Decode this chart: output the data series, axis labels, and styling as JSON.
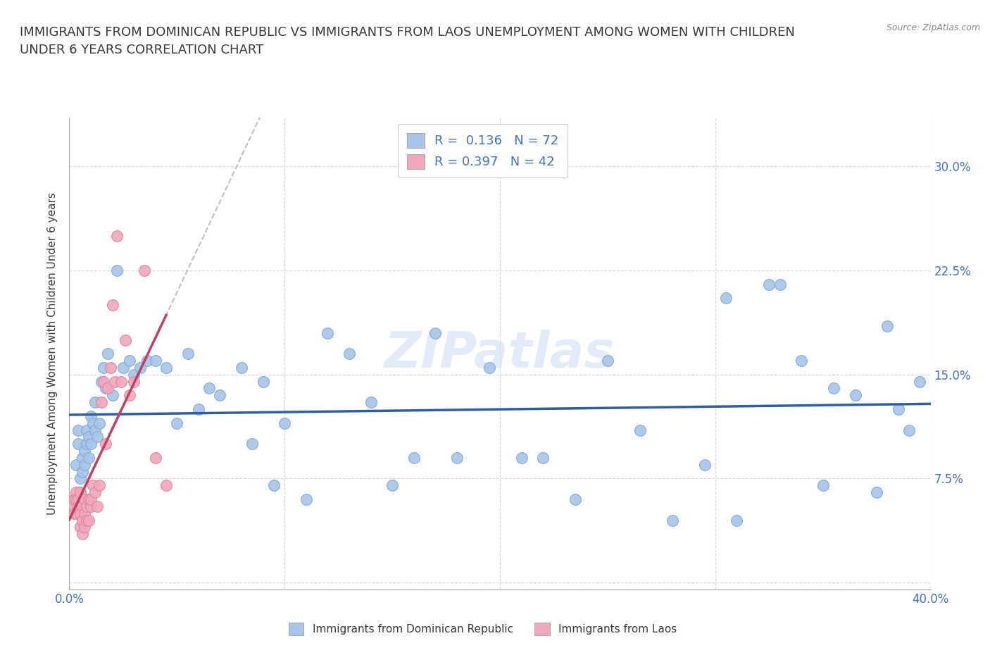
{
  "title": "IMMIGRANTS FROM DOMINICAN REPUBLIC VS IMMIGRANTS FROM LAOS UNEMPLOYMENT AMONG WOMEN WITH CHILDREN\nUNDER 6 YEARS CORRELATION CHART",
  "source_text": "Source: ZipAtlas.com",
  "ylabel": "Unemployment Among Women with Children Under 6 years",
  "title_fontsize": 13,
  "title_color": "#3a3a3a",
  "source_color": "#888888",
  "xlim": [
    0.0,
    0.4
  ],
  "ylim": [
    -0.005,
    0.335
  ],
  "xticks": [
    0.0,
    0.1,
    0.2,
    0.3,
    0.4
  ],
  "xticklabels_show": [
    "0.0%",
    "40.0%"
  ],
  "xticklabels_pos": [
    0.0,
    0.4
  ],
  "yticks": [
    0.0,
    0.075,
    0.15,
    0.225,
    0.3
  ],
  "yticklabels": [
    "",
    "7.5%",
    "15.0%",
    "22.5%",
    "30.0%"
  ],
  "tick_color": "#4472c4",
  "grid_color": "#d0d0d0",
  "blue_color": "#a8c4e8",
  "pink_color": "#f0a8bc",
  "blue_edge_color": "#7aaad4",
  "pink_edge_color": "#e080a0",
  "blue_line_color": "#2e5fa3",
  "pink_line_color": "#c04060",
  "gray_dash_color": "#c0c0c0",
  "watermark_text": "ZIPatlas",
  "legend_R1": "0.136",
  "legend_N1": "72",
  "legend_R2": "0.397",
  "legend_N2": "42",
  "legend_label1": "Immigrants from Dominican Republic",
  "legend_label2": "Immigrants from Laos",
  "blue_x": [
    0.003,
    0.004,
    0.004,
    0.005,
    0.005,
    0.006,
    0.006,
    0.007,
    0.007,
    0.008,
    0.008,
    0.009,
    0.009,
    0.01,
    0.01,
    0.011,
    0.012,
    0.012,
    0.013,
    0.014,
    0.015,
    0.016,
    0.017,
    0.018,
    0.02,
    0.022,
    0.025,
    0.028,
    0.03,
    0.033,
    0.036,
    0.04,
    0.045,
    0.05,
    0.055,
    0.06,
    0.065,
    0.07,
    0.08,
    0.085,
    0.09,
    0.095,
    0.1,
    0.11,
    0.12,
    0.13,
    0.14,
    0.15,
    0.16,
    0.17,
    0.18,
    0.195,
    0.21,
    0.22,
    0.235,
    0.25,
    0.265,
    0.28,
    0.295,
    0.31,
    0.325,
    0.34,
    0.355,
    0.365,
    0.375,
    0.385,
    0.39,
    0.395,
    0.305,
    0.33,
    0.35,
    0.38
  ],
  "blue_y": [
    0.085,
    0.1,
    0.11,
    0.065,
    0.075,
    0.09,
    0.08,
    0.095,
    0.085,
    0.1,
    0.11,
    0.105,
    0.09,
    0.12,
    0.1,
    0.115,
    0.13,
    0.11,
    0.105,
    0.115,
    0.145,
    0.155,
    0.14,
    0.165,
    0.135,
    0.225,
    0.155,
    0.16,
    0.15,
    0.155,
    0.16,
    0.16,
    0.155,
    0.115,
    0.165,
    0.125,
    0.14,
    0.135,
    0.155,
    0.1,
    0.145,
    0.07,
    0.115,
    0.06,
    0.18,
    0.165,
    0.13,
    0.07,
    0.09,
    0.18,
    0.09,
    0.155,
    0.09,
    0.09,
    0.06,
    0.16,
    0.11,
    0.045,
    0.085,
    0.045,
    0.215,
    0.16,
    0.14,
    0.135,
    0.065,
    0.125,
    0.11,
    0.145,
    0.205,
    0.215,
    0.07,
    0.185
  ],
  "pink_x": [
    0.001,
    0.002,
    0.002,
    0.003,
    0.003,
    0.003,
    0.004,
    0.004,
    0.005,
    0.005,
    0.005,
    0.006,
    0.006,
    0.006,
    0.007,
    0.007,
    0.007,
    0.008,
    0.008,
    0.009,
    0.009,
    0.01,
    0.01,
    0.011,
    0.012,
    0.013,
    0.014,
    0.015,
    0.016,
    0.017,
    0.018,
    0.019,
    0.02,
    0.021,
    0.022,
    0.024,
    0.026,
    0.028,
    0.03,
    0.035,
    0.04,
    0.045
  ],
  "pink_y": [
    0.055,
    0.06,
    0.05,
    0.065,
    0.05,
    0.06,
    0.055,
    0.06,
    0.05,
    0.065,
    0.04,
    0.035,
    0.045,
    0.055,
    0.04,
    0.05,
    0.06,
    0.045,
    0.055,
    0.045,
    0.06,
    0.055,
    0.06,
    0.07,
    0.065,
    0.055,
    0.07,
    0.13,
    0.145,
    0.1,
    0.14,
    0.155,
    0.2,
    0.145,
    0.25,
    0.145,
    0.175,
    0.135,
    0.145,
    0.225,
    0.09,
    0.07
  ]
}
